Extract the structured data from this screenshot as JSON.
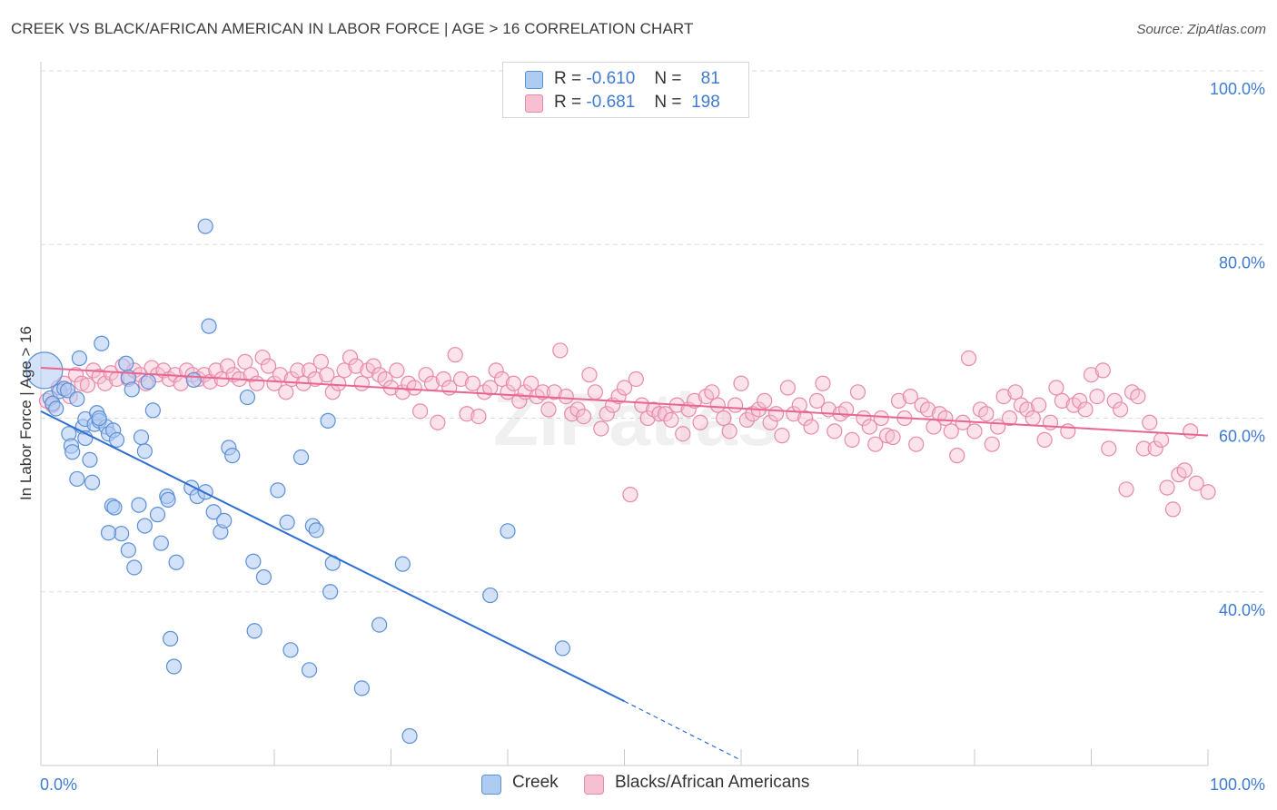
{
  "title": "CREEK VS BLACK/AFRICAN AMERICAN IN LABOR FORCE | AGE > 16 CORRELATION CHART",
  "source": "Source: ZipAtlas.com",
  "watermark": "ZIPatlas",
  "colors": {
    "creek_fill": "#aecbf2",
    "creek_stroke": "#5b8fd6",
    "creek_line": "#2f6fd0",
    "black_fill": "#f7bfd2",
    "black_stroke": "#e889aa",
    "black_line": "#e8668f",
    "tick_color": "#3f7bd0"
  },
  "legend": {
    "rows": [
      {
        "r_label": "R =",
        "r_value": "-0.610",
        "n_label": "N =",
        "n_value": "81"
      },
      {
        "r_label": "R =",
        "r_value": "-0.681",
        "n_label": "N =",
        "n_value": "198"
      }
    ]
  },
  "bottom_legend": [
    "Creek",
    "Blacks/African Americans"
  ],
  "chart_data": {
    "type": "scatter",
    "xlabel": "",
    "ylabel": "In Labor Force | Age > 16",
    "xlim": [
      0,
      100
    ],
    "ylim": [
      20,
      100
    ],
    "x_tick_labels": [
      "0.0%",
      "100.0%"
    ],
    "y_ticks": [
      40,
      60,
      80,
      100
    ],
    "y_tick_labels": [
      "40.0%",
      "60.0%",
      "80.0%",
      "100.0%"
    ],
    "grid": "horizontal dashed",
    "legend_position": "top-center",
    "series": [
      {
        "name": "Creek",
        "r": -0.61,
        "n": 81,
        "trend": {
          "x0": 0,
          "y0": 60.8,
          "x1": 50,
          "y1": 27.4,
          "dashed_to_x": 60,
          "dashed_to_y": 20.6
        },
        "points": [
          [
            0.3,
            65.5
          ],
          [
            0.8,
            62.3
          ],
          [
            1.0,
            61.7
          ],
          [
            1.3,
            61.1
          ],
          [
            1.6,
            63.1
          ],
          [
            2.0,
            63.4
          ],
          [
            2.3,
            63.2
          ],
          [
            3.1,
            62.2
          ],
          [
            3.3,
            66.9
          ],
          [
            3.6,
            59.0
          ],
          [
            3.8,
            57.7
          ],
          [
            2.4,
            58.2
          ],
          [
            2.6,
            56.8
          ],
          [
            2.7,
            56.1
          ],
          [
            3.1,
            53.0
          ],
          [
            4.2,
            55.2
          ],
          [
            4.4,
            52.6
          ],
          [
            3.8,
            59.9
          ],
          [
            4.6,
            59.3
          ],
          [
            4.8,
            60.6
          ],
          [
            5.0,
            59.7
          ],
          [
            5.2,
            68.6
          ],
          [
            5.6,
            59.0
          ],
          [
            5.8,
            58.2
          ],
          [
            6.2,
            58.6
          ],
          [
            6.5,
            57.5
          ],
          [
            7.3,
            66.3
          ],
          [
            7.5,
            64.7
          ],
          [
            7.8,
            63.3
          ],
          [
            6.1,
            49.9
          ],
          [
            6.3,
            49.7
          ],
          [
            6.9,
            46.7
          ],
          [
            5.8,
            46.8
          ],
          [
            7.5,
            44.8
          ],
          [
            8.0,
            42.8
          ],
          [
            8.4,
            50.0
          ],
          [
            8.6,
            57.8
          ],
          [
            8.9,
            56.2
          ],
          [
            9.2,
            64.2
          ],
          [
            9.6,
            60.9
          ],
          [
            10.0,
            48.9
          ],
          [
            8.9,
            47.6
          ],
          [
            10.3,
            45.6
          ],
          [
            10.8,
            51.0
          ],
          [
            10.9,
            50.6
          ],
          [
            11.6,
            43.4
          ],
          [
            12.9,
            52.0
          ],
          [
            13.1,
            64.4
          ],
          [
            13.4,
            51.0
          ],
          [
            14.1,
            51.5
          ],
          [
            14.1,
            82.1
          ],
          [
            14.4,
            70.6
          ],
          [
            14.8,
            49.2
          ],
          [
            15.4,
            46.9
          ],
          [
            15.7,
            48.2
          ],
          [
            16.1,
            56.6
          ],
          [
            16.4,
            55.7
          ],
          [
            17.7,
            62.4
          ],
          [
            18.2,
            43.5
          ],
          [
            19.1,
            41.7
          ],
          [
            18.3,
            35.5
          ],
          [
            20.3,
            51.7
          ],
          [
            21.1,
            48.0
          ],
          [
            21.4,
            33.3
          ],
          [
            22.3,
            55.5
          ],
          [
            23.0,
            31.0
          ],
          [
            23.3,
            47.6
          ],
          [
            23.6,
            47.1
          ],
          [
            25.0,
            43.3
          ],
          [
            24.8,
            40.0
          ],
          [
            24.6,
            59.7
          ],
          [
            27.5,
            28.9
          ],
          [
            29.0,
            36.2
          ],
          [
            31.0,
            43.2
          ],
          [
            31.6,
            23.4
          ],
          [
            38.5,
            39.6
          ],
          [
            11.1,
            34.6
          ],
          [
            11.4,
            31.4
          ],
          [
            40.0,
            47.0
          ],
          [
            44.7,
            33.5
          ],
          [
            5.0,
            60.0
          ]
        ]
      },
      {
        "name": "Blacks/African Americans",
        "r": -0.681,
        "n": 198,
        "trend": {
          "x0": 0,
          "y0": 65.8,
          "x1": 100,
          "y1": 58.0
        },
        "points": [
          [
            0.5,
            62.0
          ],
          [
            1.0,
            61.5
          ],
          [
            1.5,
            63.5
          ],
          [
            2.0,
            64.0
          ],
          [
            2.5,
            62.5
          ],
          [
            3.0,
            65.0
          ],
          [
            3.5,
            64.0
          ],
          [
            4.0,
            63.8
          ],
          [
            4.5,
            65.5
          ],
          [
            5.0,
            64.8
          ],
          [
            5.5,
            64.0
          ],
          [
            6.0,
            65.2
          ],
          [
            6.5,
            64.5
          ],
          [
            7.0,
            66.0
          ],
          [
            7.5,
            64.5
          ],
          [
            8.0,
            65.5
          ],
          [
            8.5,
            65.0
          ],
          [
            9.0,
            64.0
          ],
          [
            9.5,
            65.8
          ],
          [
            10.0,
            65.0
          ],
          [
            10.5,
            65.5
          ],
          [
            11.0,
            64.5
          ],
          [
            11.5,
            65.0
          ],
          [
            12.0,
            64.0
          ],
          [
            12.5,
            65.5
          ],
          [
            13.0,
            65.0
          ],
          [
            13.5,
            64.5
          ],
          [
            14.0,
            65.0
          ],
          [
            14.5,
            64.2
          ],
          [
            15.0,
            65.5
          ],
          [
            15.5,
            64.5
          ],
          [
            16.0,
            66.0
          ],
          [
            16.5,
            65.0
          ],
          [
            17.0,
            64.5
          ],
          [
            17.5,
            66.5
          ],
          [
            18.0,
            65.0
          ],
          [
            18.5,
            64.0
          ],
          [
            19.0,
            67.0
          ],
          [
            19.5,
            66.0
          ],
          [
            20.0,
            64.0
          ],
          [
            20.5,
            65.0
          ],
          [
            21.0,
            63.0
          ],
          [
            21.5,
            64.5
          ],
          [
            22.0,
            65.5
          ],
          [
            22.5,
            64.0
          ],
          [
            23.0,
            65.5
          ],
          [
            23.5,
            64.5
          ],
          [
            24.0,
            66.5
          ],
          [
            24.5,
            65.0
          ],
          [
            25.0,
            63.0
          ],
          [
            25.5,
            64.0
          ],
          [
            26.0,
            65.5
          ],
          [
            26.5,
            67.0
          ],
          [
            27.0,
            66.0
          ],
          [
            27.5,
            64.0
          ],
          [
            28.0,
            65.5
          ],
          [
            28.5,
            66.0
          ],
          [
            29.0,
            65.0
          ],
          [
            29.5,
            64.5
          ],
          [
            30.0,
            63.5
          ],
          [
            30.5,
            65.5
          ],
          [
            31.0,
            63.0
          ],
          [
            31.5,
            64.0
          ],
          [
            32.0,
            63.5
          ],
          [
            32.5,
            60.8
          ],
          [
            33.0,
            65.0
          ],
          [
            33.5,
            64.0
          ],
          [
            34.0,
            59.5
          ],
          [
            34.5,
            64.5
          ],
          [
            35.0,
            63.5
          ],
          [
            35.5,
            67.3
          ],
          [
            36.0,
            64.5
          ],
          [
            36.5,
            60.5
          ],
          [
            37.0,
            64.0
          ],
          [
            37.5,
            60.2
          ],
          [
            38.0,
            63.0
          ],
          [
            38.5,
            63.5
          ],
          [
            39.0,
            65.5
          ],
          [
            39.5,
            64.5
          ],
          [
            40.0,
            63.0
          ],
          [
            40.5,
            64.0
          ],
          [
            41.0,
            62.0
          ],
          [
            41.5,
            63.0
          ],
          [
            42.0,
            64.0
          ],
          [
            42.5,
            62.5
          ],
          [
            43.0,
            63.0
          ],
          [
            43.5,
            61.0
          ],
          [
            44.0,
            63.0
          ],
          [
            44.5,
            67.8
          ],
          [
            45.0,
            62.5
          ],
          [
            45.5,
            60.5
          ],
          [
            46.0,
            61.0
          ],
          [
            46.5,
            60.2
          ],
          [
            47.0,
            65.0
          ],
          [
            47.5,
            63.0
          ],
          [
            48.0,
            58.8
          ],
          [
            48.5,
            60.5
          ],
          [
            49.0,
            61.5
          ],
          [
            49.5,
            62.5
          ],
          [
            50.0,
            63.5
          ],
          [
            50.5,
            51.2
          ],
          [
            51.0,
            64.5
          ],
          [
            51.5,
            61.5
          ],
          [
            52.0,
            60.0
          ],
          [
            52.5,
            61.0
          ],
          [
            53.0,
            60.5
          ],
          [
            53.5,
            60.5
          ],
          [
            54.0,
            59.8
          ],
          [
            54.5,
            61.5
          ],
          [
            55.0,
            58.2
          ],
          [
            55.5,
            61.0
          ],
          [
            56.0,
            62.0
          ],
          [
            56.5,
            59.5
          ],
          [
            57.0,
            62.5
          ],
          [
            57.5,
            63.0
          ],
          [
            58.0,
            61.5
          ],
          [
            58.5,
            60.0
          ],
          [
            59.0,
            58.5
          ],
          [
            59.5,
            61.5
          ],
          [
            60.0,
            64.0
          ],
          [
            60.5,
            59.8
          ],
          [
            61.0,
            60.5
          ],
          [
            61.5,
            61.0
          ],
          [
            62.0,
            62.0
          ],
          [
            62.5,
            59.5
          ],
          [
            63.0,
            60.5
          ],
          [
            63.5,
            58.0
          ],
          [
            64.0,
            63.5
          ],
          [
            64.5,
            60.5
          ],
          [
            65.0,
            61.5
          ],
          [
            65.5,
            60.0
          ],
          [
            66.0,
            59.0
          ],
          [
            66.5,
            62.0
          ],
          [
            67.0,
            64.0
          ],
          [
            67.5,
            61.0
          ],
          [
            68.0,
            58.5
          ],
          [
            68.5,
            60.5
          ],
          [
            69.0,
            61.0
          ],
          [
            69.5,
            57.5
          ],
          [
            70.0,
            63.0
          ],
          [
            70.5,
            60.0
          ],
          [
            71.0,
            59.0
          ],
          [
            71.5,
            57.0
          ],
          [
            72.0,
            60.0
          ],
          [
            72.5,
            58.0
          ],
          [
            73.0,
            57.8
          ],
          [
            73.5,
            62.0
          ],
          [
            74.0,
            60.0
          ],
          [
            74.5,
            62.5
          ],
          [
            75.0,
            57.0
          ],
          [
            75.5,
            61.5
          ],
          [
            76.0,
            61.0
          ],
          [
            76.5,
            59.0
          ],
          [
            77.0,
            60.5
          ],
          [
            77.5,
            60.0
          ],
          [
            78.0,
            58.5
          ],
          [
            78.5,
            55.7
          ],
          [
            79.0,
            59.5
          ],
          [
            79.5,
            66.9
          ],
          [
            80.0,
            58.5
          ],
          [
            80.5,
            61.0
          ],
          [
            81.0,
            60.5
          ],
          [
            81.5,
            57.0
          ],
          [
            82.0,
            59.0
          ],
          [
            82.5,
            62.5
          ],
          [
            83.0,
            60.0
          ],
          [
            83.5,
            63.0
          ],
          [
            84.0,
            61.5
          ],
          [
            84.5,
            61.0
          ],
          [
            85.0,
            60.0
          ],
          [
            85.5,
            61.5
          ],
          [
            86.0,
            57.5
          ],
          [
            86.5,
            59.5
          ],
          [
            87.0,
            63.5
          ],
          [
            87.5,
            62.0
          ],
          [
            88.0,
            58.5
          ],
          [
            88.5,
            61.5
          ],
          [
            89.0,
            62.0
          ],
          [
            89.5,
            61.0
          ],
          [
            90.0,
            65.0
          ],
          [
            90.5,
            62.5
          ],
          [
            91.0,
            65.5
          ],
          [
            91.5,
            56.5
          ],
          [
            92.0,
            62.0
          ],
          [
            92.5,
            61.0
          ],
          [
            93.0,
            51.8
          ],
          [
            93.5,
            63.0
          ],
          [
            94.0,
            62.5
          ],
          [
            94.5,
            56.5
          ],
          [
            95.0,
            59.5
          ],
          [
            95.5,
            56.5
          ],
          [
            96.0,
            57.5
          ],
          [
            96.5,
            52.0
          ],
          [
            97.0,
            49.5
          ],
          [
            97.5,
            53.5
          ],
          [
            98.0,
            54.0
          ],
          [
            98.5,
            58.5
          ],
          [
            99.0,
            52.5
          ],
          [
            100.0,
            51.5
          ]
        ]
      }
    ]
  }
}
